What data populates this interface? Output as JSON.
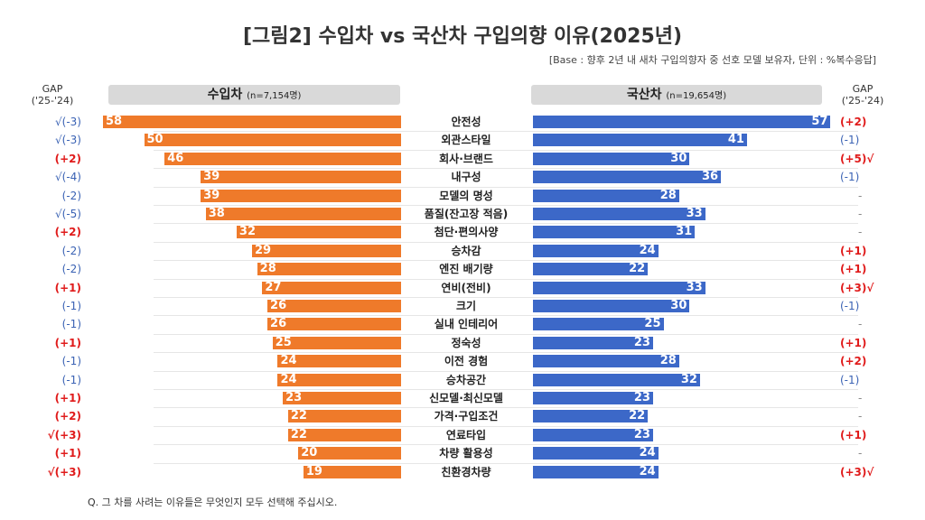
{
  "title": "[그림2] 수입차 vs 국산차 구입의향 이유(2025년)",
  "subtitle": "[Base : 향후 2년 내 새차 구입의향자 중 선호 모델 보유자, 단위 : %복수응답]",
  "note": "Q. 그 차를 사려는 이유들은 무엇인지 모두 선택해 주십시오.",
  "gap_header": {
    "line1": "GAP",
    "line2": "('25-'24)"
  },
  "colors": {
    "imported": "#ef7a2a",
    "domestic": "#3c68c8",
    "gap_up": "#e01b1b",
    "gap_down": "#3a62b4"
  },
  "chart_data": {
    "type": "bar",
    "orientation": "horizontal-butterfly",
    "title": "[그림2] 수입차 vs 국산차 구입의향 이유(2025년)",
    "categories": [
      "안전성",
      "외관스타일",
      "회사·브랜드",
      "내구성",
      "모델의 명성",
      "품질(잔고장 적음)",
      "첨단·편의사양",
      "승차감",
      "엔진 배기량",
      "연비(전비)",
      "크기",
      "실내 인테리어",
      "정숙성",
      "이전 경험",
      "승차공간",
      "신모델·최신모델",
      "가격·구입조건",
      "연료타입",
      "차량 활용성",
      "친환경차량"
    ],
    "series": [
      {
        "name": "수입차",
        "sample": "(n=7,154명)",
        "values": [
          58,
          50,
          46,
          39,
          39,
          38,
          32,
          29,
          28,
          27,
          26,
          26,
          25,
          24,
          24,
          23,
          22,
          22,
          20,
          19
        ],
        "gap": [
          "(-3)",
          "(-3)",
          "(+2)",
          "(-4)",
          "(-2)",
          "(-5)",
          "(+2)",
          "(-2)",
          "(-2)",
          "(+1)",
          "(-1)",
          "(-1)",
          "(+1)",
          "(-1)",
          "(-1)",
          "(+1)",
          "(+2)",
          "(+3)",
          "(+1)",
          "(+3)"
        ],
        "check": [
          true,
          true,
          false,
          true,
          false,
          true,
          false,
          false,
          false,
          false,
          false,
          false,
          false,
          false,
          false,
          false,
          false,
          true,
          false,
          true
        ]
      },
      {
        "name": "국산차",
        "sample": "(n=19,654명)",
        "values": [
          57,
          41,
          30,
          36,
          28,
          33,
          31,
          24,
          22,
          33,
          30,
          25,
          23,
          28,
          32,
          23,
          22,
          23,
          24,
          24
        ],
        "gap": [
          "(+2)",
          "(-1)",
          "(+5)",
          "(-1)",
          "-",
          "-",
          "-",
          "(+1)",
          "(+1)",
          "(+3)",
          "(-1)",
          "-",
          "(+1)",
          "(+2)",
          "(-1)",
          "-",
          "-",
          "(+1)",
          "-",
          "(+3)"
        ],
        "check": [
          false,
          false,
          true,
          false,
          false,
          false,
          false,
          false,
          false,
          true,
          false,
          false,
          false,
          false,
          false,
          false,
          false,
          false,
          false,
          true
        ]
      }
    ],
    "check_mark": "√",
    "unit": "%"
  }
}
